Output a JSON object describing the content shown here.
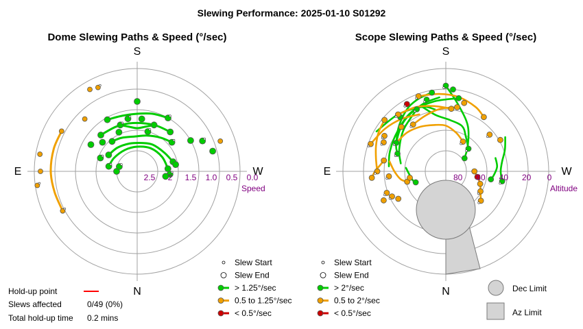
{
  "title": "Slewing Performance: 2025-01-10 S01292",
  "chart_data": [
    {
      "type": "polar",
      "title": "Dome Slewing Paths & Speed (°/sec)",
      "cardinals": {
        "top": "S",
        "bottom": "N",
        "left": "E",
        "right": "W"
      },
      "radial_axis": {
        "label": "Speed",
        "ticks": [
          "2.5",
          "2",
          "1.5",
          "1.0",
          "0.5",
          "0.0"
        ]
      },
      "legend": [
        {
          "label": "Slew Start",
          "marker": "small-open-circle"
        },
        {
          "label": "Slew End",
          "marker": "open-circle"
        },
        {
          "label": "> 1.25°/sec",
          "color": "#00cc00"
        },
        {
          "label": "0.5 to 1.25°/sec",
          "color": "#f0a000"
        },
        {
          "label": "< 0.5°/sec",
          "color": "#cc0000"
        }
      ],
      "series": [
        {
          "name": "> 1.25°/sec",
          "color": "#00cc00",
          "paths": [
            {
              "az": [
                340,
                350,
                0,
                10,
                20
              ],
              "v": [
                1.8,
                1.9,
                1.95,
                1.9,
                1.8
              ]
            },
            {
              "az": [
                320,
                335,
                355,
                15,
                35,
                50
              ],
              "v": [
                2.05,
                2.1,
                2.15,
                2.1,
                2.0,
                1.9
              ]
            },
            {
              "az": [
                300,
                320,
                345,
                10,
                30,
                55,
                75
              ],
              "v": [
                2.2,
                2.25,
                2.3,
                2.3,
                2.25,
                2.2,
                2.1
              ]
            },
            {
              "az": [
                280,
                300,
                330,
                0,
                30,
                60,
                85
              ],
              "v": [
                2.3,
                2.35,
                2.4,
                2.4,
                2.35,
                2.3,
                2.25
              ]
            },
            {
              "az": [
                330,
                345,
                0,
                15,
                30
              ],
              "v": [
                1.55,
                1.6,
                1.6,
                1.55,
                1.5
              ]
            },
            {
              "az": [
                315,
                335,
                355,
                20,
                40
              ],
              "v": [
                1.75,
                1.8,
                1.82,
                1.8,
                1.75
              ]
            }
          ],
          "points": [
            {
              "az": 340,
              "v": 1.8
            },
            {
              "az": 20,
              "v": 1.8
            },
            {
              "az": 320,
              "v": 2.05
            },
            {
              "az": 50,
              "v": 1.9
            },
            {
              "az": 300,
              "v": 2.2
            },
            {
              "az": 75,
              "v": 2.1
            },
            {
              "az": 280,
              "v": 2.3
            },
            {
              "az": 85,
              "v": 2.25
            },
            {
              "az": 330,
              "v": 1.55
            },
            {
              "az": 30,
              "v": 1.5
            },
            {
              "az": 315,
              "v": 1.75
            },
            {
              "az": 40,
              "v": 1.75
            },
            {
              "az": 350,
              "v": 1.7
            },
            {
              "az": 5,
              "v": 1.72
            },
            {
              "az": 335,
              "v": 1.95
            },
            {
              "az": 15,
              "v": 2.0
            },
            {
              "az": 310,
              "v": 1.9
            },
            {
              "az": 300,
              "v": 1.7
            },
            {
              "az": 290,
              "v": 2.05
            },
            {
              "az": 0,
              "v": 1.3
            },
            {
              "az": 60,
              "v": 1.5
            },
            {
              "az": 65,
              "v": 1.25
            },
            {
              "az": 75,
              "v": 1.1
            },
            {
              "az": 80,
              "v": 2.05
            },
            {
              "az": 95,
              "v": 2.2
            },
            {
              "az": 100,
              "v": 2.3
            },
            {
              "az": 270,
              "v": 2.5
            },
            {
              "az": 285,
              "v": 2.55
            }
          ]
        },
        {
          "name": "0.5 to 1.25°/sec",
          "color": "#f0a000",
          "paths": [
            {
              "az": [
                242,
                256,
                270,
                285,
                298
              ],
              "v": [
                0.95,
                0.93,
                0.9,
                0.9,
                0.92
              ]
            }
          ],
          "points": [
            {
              "az": 242,
              "v": 0.95
            },
            {
              "az": 298,
              "v": 0.92
            },
            {
              "az": 270,
              "v": 0.65
            },
            {
              "az": 262,
              "v": 0.55
            },
            {
              "az": 280,
              "v": 0.6
            },
            {
              "az": 330,
              "v": 0.7
            },
            {
              "az": 335,
              "v": 0.75
            },
            {
              "az": 315,
              "v": 1.2
            },
            {
              "az": 70,
              "v": 0.85
            }
          ]
        }
      ]
    },
    {
      "type": "polar",
      "title": "Scope Slewing Paths & Speed (°/sec)",
      "cardinals": {
        "top": "S",
        "bottom": "N",
        "left": "E",
        "right": "W"
      },
      "radial_axis": {
        "label": "Altitude",
        "ticks": [
          "80",
          "60",
          "40",
          "20",
          "0"
        ]
      },
      "legend": [
        {
          "label": "Slew Start",
          "marker": "small-open-circle"
        },
        {
          "label": "Slew End",
          "marker": "open-circle"
        },
        {
          "label": "> 2°/sec",
          "color": "#00cc00"
        },
        {
          "label": "0.5 to 2°/sec",
          "color": "#f0a000"
        },
        {
          "label": "< 0.5°/sec",
          "color": "#cc0000"
        },
        {
          "label": "Dec Limit",
          "marker": "grey-circle"
        },
        {
          "label": "Az Limit",
          "marker": "grey-square"
        }
      ],
      "series": [
        {
          "name": "> 2°/sec",
          "color": "#00cc00",
          "paths": [
            {
              "az": [
                0,
                10,
                25,
                40,
                55
              ],
              "alt": [
                15,
                30,
                45,
                60,
                70
              ]
            },
            {
              "az": [
                300,
                310,
                320,
                330,
                340,
                350
              ],
              "alt": [
                40,
                35,
                30,
                25,
                22,
                20
              ]
            },
            {
              "az": [
                290,
                300,
                320,
                340,
                355
              ],
              "alt": [
                45,
                40,
                33,
                28,
                25
              ]
            },
            {
              "az": [
                275,
                290,
                310,
                330,
                350,
                10
              ],
              "alt": [
                40,
                38,
                35,
                30,
                28,
                25
              ]
            },
            {
              "az": [
                280,
                295,
                315,
                335
              ],
              "alt": [
                50,
                45,
                38,
                30
              ]
            },
            {
              "az": [
                340,
                350,
                5,
                20,
                30,
                45
              ],
              "alt": [
                30,
                40,
                45,
                48,
                55,
                62
              ]
            },
            {
              "az": [
                60,
                70,
                80,
                90,
                100
              ],
              "alt": [
                30,
                35,
                40,
                42,
                40
              ]
            },
            {
              "az": [
                75,
                85,
                95,
                100
              ],
              "alt": [
                45,
                45,
                48,
                50
              ]
            },
            {
              "az": [
                300,
                320,
                340,
                350
              ],
              "alt": [
                20,
                25,
                30,
                35
              ]
            },
            {
              "az": [
                275,
                265,
                255,
                250
              ],
              "alt": [
                55,
                58,
                60,
                62
              ]
            }
          ],
          "points": [
            {
              "az": 0,
              "alt": 15
            },
            {
              "az": 55,
              "alt": 70
            },
            {
              "az": 300,
              "alt": 40
            },
            {
              "az": 350,
              "alt": 20
            },
            {
              "az": 290,
              "alt": 45
            },
            {
              "az": 10,
              "alt": 25
            },
            {
              "az": 100,
              "alt": 40
            },
            {
              "az": 100,
              "alt": 50
            },
            {
              "az": 335,
              "alt": 30
            },
            {
              "az": 250,
              "alt": 62
            },
            {
              "az": 45,
              "alt": 62
            },
            {
              "az": 5,
              "alt": 18
            },
            {
              "az": 345,
              "alt": 25
            },
            {
              "az": 320,
              "alt": 28
            }
          ]
        },
        {
          "name": "0.5 to 2°/sec",
          "color": "#f0a000",
          "paths": [
            {
              "az": [
                340,
                355,
                10,
                25,
                35
              ],
              "alt": [
                20,
                22,
                24,
                28,
                32
              ]
            },
            {
              "az": [
                320,
                335,
                350,
                5
              ],
              "alt": [
                25,
                28,
                32,
                35
              ]
            },
            {
              "az": [
                290,
                305,
                320,
                335
              ],
              "alt": [
                20,
                25,
                30,
                35
              ]
            },
            {
              "az": [
                270,
                280,
                290,
                300,
                310
              ],
              "alt": [
                30,
                28,
                25,
                22,
                20
              ]
            },
            {
              "az": [
                255,
                260,
                270,
                280
              ],
              "alt": [
                55,
                50,
                45,
                40
              ]
            },
            {
              "az": [
                300,
                315,
                330,
                345,
                0,
                15,
                30
              ],
              "alt": [
                40,
                42,
                45,
                48,
                50,
                55,
                60
              ]
            },
            {
              "az": [
                90,
                100,
                110,
                120,
                130
              ],
              "alt": [
                65,
                62,
                58,
                55,
                50
              ]
            },
            {
              "az": [
                280,
                275,
                270,
                265
              ],
              "alt": [
                35,
                32,
                28,
                25
              ]
            },
            {
              "az": [
                325,
                340,
                355,
                10
              ],
              "alt": [
                40,
                38,
                35,
                33
              ]
            }
          ],
          "points": [
            {
              "az": 340,
              "alt": 20
            },
            {
              "az": 35,
              "alt": 32
            },
            {
              "az": 320,
              "alt": 25
            },
            {
              "az": 5,
              "alt": 35
            },
            {
              "az": 290,
              "alt": 20
            },
            {
              "az": 310,
              "alt": 20
            },
            {
              "az": 270,
              "alt": 30
            },
            {
              "az": 255,
              "alt": 55
            },
            {
              "az": 30,
              "alt": 60
            },
            {
              "az": 90,
              "alt": 65
            },
            {
              "az": 130,
              "alt": 50
            },
            {
              "az": 265,
              "alt": 25
            },
            {
              "az": 325,
              "alt": 40
            },
            {
              "az": 10,
              "alt": 33
            },
            {
              "az": 295,
              "alt": 30
            },
            {
              "az": 280,
              "alt": 35
            },
            {
              "az": 300,
              "alt": 28
            },
            {
              "az": 315,
              "alt": 35
            },
            {
              "az": 330,
              "alt": 22
            },
            {
              "az": 15,
              "alt": 28
            },
            {
              "az": 50,
              "alt": 40
            },
            {
              "az": 60,
              "alt": 35
            },
            {
              "az": 265,
              "alt": 40
            },
            {
              "az": 110,
              "alt": 58
            },
            {
              "az": 120,
              "alt": 55
            },
            {
              "az": 245,
              "alt": 30
            },
            {
              "az": 250,
              "alt": 35
            },
            {
              "az": 240,
              "alt": 42
            },
            {
              "az": 245,
              "alt": 38
            },
            {
              "az": 260,
              "alt": 58
            }
          ]
        },
        {
          "name": "< 0.5°/sec",
          "color": "#cc0000",
          "paths": [],
          "points": [
            {
              "az": 330,
              "alt": 22
            },
            {
              "az": 100,
              "alt": 62
            }
          ]
        }
      ]
    }
  ],
  "holdup": {
    "point_label": "Hold-up point",
    "slews_label": "Slews affected",
    "slews_value": "0/49 (0%)",
    "time_label": "Total hold-up time",
    "time_value": "0.2 mins"
  },
  "colors": {
    "fast": "#00cc00",
    "medium": "#f0a000",
    "slow": "#cc0000",
    "limit": "#d4d4d4",
    "purple": "#800080"
  }
}
